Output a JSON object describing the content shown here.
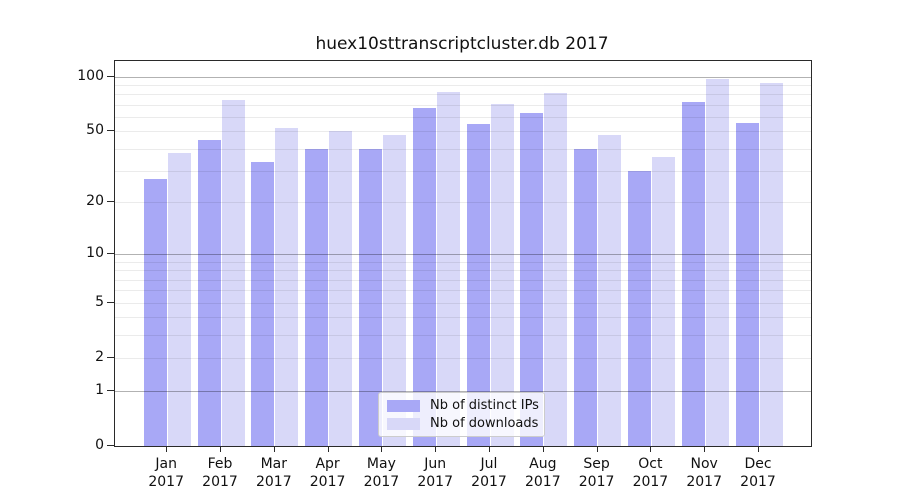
{
  "title": "huex10sttranscriptcluster.db 2017",
  "chart_data": {
    "type": "bar",
    "title": "huex10sttranscriptcluster.db 2017",
    "categories": [
      "Jan",
      "Feb",
      "Mar",
      "Apr",
      "May",
      "Jun",
      "Jul",
      "Aug",
      "Sep",
      "Oct",
      "Nov",
      "Dec"
    ],
    "year": "2017",
    "series": [
      {
        "name": "Nb of distinct IPs",
        "color": "#a8a8f6",
        "values": [
          27,
          45,
          34,
          40,
          40,
          67,
          55,
          63,
          40,
          30,
          73,
          56
        ]
      },
      {
        "name": "Nb of downloads",
        "color": "#d8d8f8",
        "values": [
          38,
          75,
          52,
          50,
          48,
          83,
          71,
          82,
          48,
          36,
          97,
          93
        ]
      }
    ],
    "xlabel": "",
    "ylabel": "",
    "yscale": "log1p",
    "ylim": [
      0,
      122
    ],
    "yticks": [
      0,
      1,
      2,
      5,
      10,
      20,
      50,
      100
    ],
    "grid": {
      "minor": [
        2,
        3,
        4,
        5,
        6,
        7,
        8,
        9,
        20,
        30,
        40,
        50,
        60,
        70,
        80,
        90
      ],
      "major": [
        1,
        10,
        100
      ],
      "minor_color": "rgba(0,0,0,0.08)",
      "major_color": "rgba(0,0,0,0.30)"
    },
    "legend_position": "lower center"
  }
}
